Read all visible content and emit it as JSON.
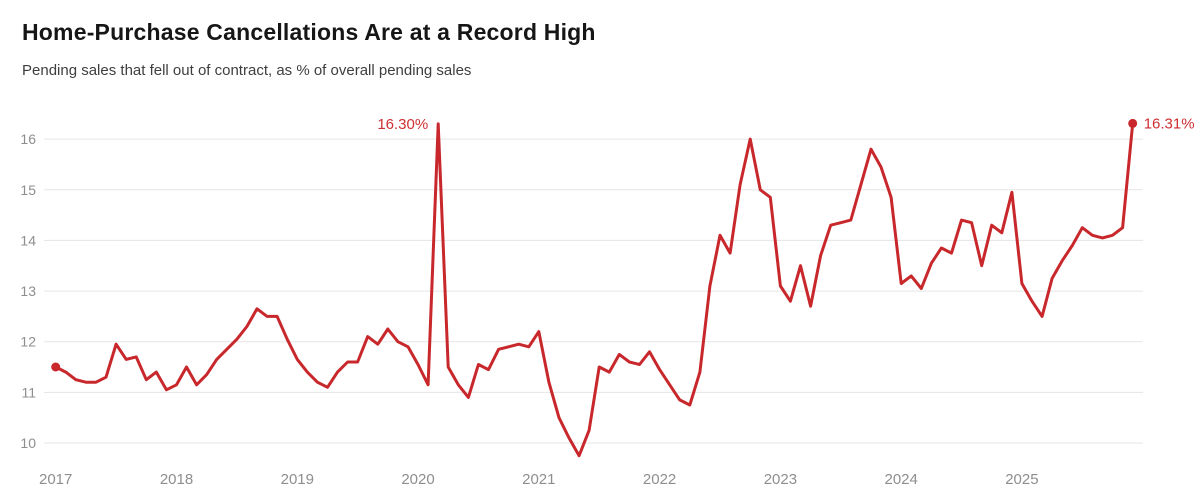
{
  "header": {
    "title": "Home-Purchase Cancellations Are at a Record High",
    "subtitle": "Pending sales that fell out of contract, as % of overall pending sales"
  },
  "chart_data": {
    "type": "line",
    "title": "Home-Purchase Cancellations Are at a Record High",
    "subtitle": "Pending sales that fell out of contract, as % of overall pending sales",
    "series_name": "Pending sales that fell out of contract (% of overall pending sales)",
    "frequency": "monthly",
    "start": "2017-01",
    "end": "2025-12",
    "year_labels": [
      "2017",
      "2018",
      "2019",
      "2020",
      "2021",
      "2022",
      "2023",
      "2024",
      "2025"
    ],
    "y_ticks": [
      10,
      11,
      12,
      13,
      14,
      15,
      16
    ],
    "ylim": [
      9.6,
      16.6
    ],
    "grid": "horizontal-only",
    "legend": "none",
    "markers": "dot on first and last point",
    "values": [
      11.5,
      11.4,
      11.25,
      11.2,
      11.2,
      11.3,
      11.95,
      11.65,
      11.7,
      11.25,
      11.4,
      11.05,
      11.15,
      11.5,
      11.15,
      11.35,
      11.65,
      11.85,
      12.05,
      12.3,
      12.65,
      12.5,
      12.5,
      12.05,
      11.65,
      11.4,
      11.2,
      11.1,
      11.4,
      11.6,
      11.6,
      12.1,
      11.95,
      12.25,
      12.0,
      11.9,
      11.55,
      11.15,
      16.3,
      11.5,
      11.15,
      10.9,
      11.55,
      11.45,
      11.85,
      11.9,
      11.95,
      11.9,
      12.2,
      11.2,
      10.5,
      10.1,
      9.75,
      10.25,
      11.5,
      11.4,
      11.75,
      11.6,
      11.55,
      11.8,
      11.45,
      11.15,
      10.85,
      10.75,
      11.4,
      13.1,
      14.1,
      13.75,
      15.1,
      16.0,
      15.0,
      14.85,
      13.1,
      12.8,
      13.5,
      12.7,
      13.7,
      14.3,
      14.35,
      14.4,
      15.1,
      15.8,
      15.45,
      14.85,
      13.15,
      13.3,
      13.05,
      13.55,
      13.85,
      13.75,
      14.4,
      14.35,
      13.5,
      14.3,
      14.15,
      14.95,
      13.15,
      12.8,
      12.5,
      13.25,
      13.6,
      13.9,
      14.25,
      14.1,
      14.05,
      14.1,
      14.25,
      16.31
    ],
    "annotations": [
      {
        "label": "16.30%",
        "point_index": 38,
        "value": 16.3,
        "side": "left"
      },
      {
        "label": "16.31%",
        "point_index": 107,
        "value": 16.31,
        "side": "right"
      }
    ],
    "colors": {
      "line": "#c8282c",
      "annotation": "#cd2f33",
      "grid": "#e5e5e5",
      "axis_text": "#8e8e8e",
      "title_text": "#161616",
      "subtitle_text": "#3e3e3e"
    }
  }
}
